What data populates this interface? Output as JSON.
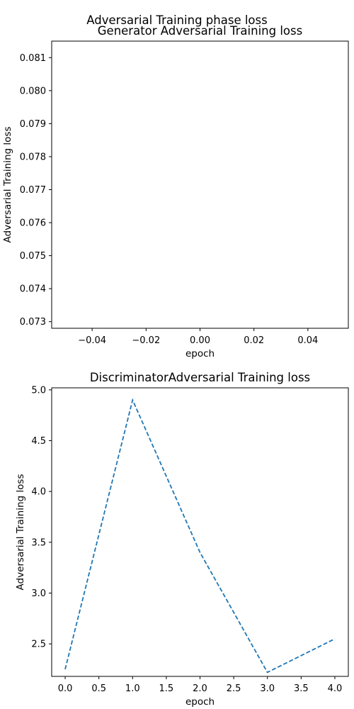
{
  "figure": {
    "suptitle": "Adversarial Training phase loss"
  },
  "chart_data": [
    {
      "type": "line",
      "title": "Generator Adversarial Training loss",
      "xlabel": "epoch",
      "ylabel": "Adversarial Training loss",
      "xlim": [
        -0.055,
        0.055
      ],
      "ylim": [
        0.0728,
        0.0815
      ],
      "xticks": [
        -0.04,
        -0.02,
        0.0,
        0.02,
        0.04
      ],
      "xtick_labels": [
        "−0.04",
        "−0.02",
        "0.00",
        "0.02",
        "0.04"
      ],
      "yticks": [
        0.073,
        0.074,
        0.075,
        0.076,
        0.077,
        0.078,
        0.079,
        0.08,
        0.081
      ],
      "ytick_labels": [
        "0.073",
        "0.074",
        "0.075",
        "0.076",
        "0.077",
        "0.078",
        "0.079",
        "0.080",
        "0.081"
      ],
      "series": [
        {
          "x": [],
          "values": [],
          "color": "#1f77b4",
          "style": "dashed"
        }
      ],
      "grid": false
    },
    {
      "type": "line",
      "title": "DiscriminatorAdversarial Training loss",
      "xlabel": "epoch",
      "ylabel": "Adversarial Training loss",
      "xlim": [
        -0.2,
        4.2
      ],
      "ylim": [
        2.18,
        5.02
      ],
      "xticks": [
        0.0,
        0.5,
        1.0,
        1.5,
        2.0,
        2.5,
        3.0,
        3.5,
        4.0
      ],
      "xtick_labels": [
        "0.0",
        "0.5",
        "1.0",
        "1.5",
        "2.0",
        "2.5",
        "3.0",
        "3.5",
        "4.0"
      ],
      "yticks": [
        2.5,
        3.0,
        3.5,
        4.0,
        4.5,
        5.0
      ],
      "ytick_labels": [
        "2.5",
        "3.0",
        "3.5",
        "4.0",
        "4.5",
        "5.0"
      ],
      "series": [
        {
          "x": [
            0,
            1,
            2,
            3,
            4
          ],
          "values": [
            2.25,
            4.9,
            3.4,
            2.22,
            2.55
          ],
          "color": "#1f77b4",
          "style": "dashed"
        }
      ],
      "grid": false
    }
  ]
}
